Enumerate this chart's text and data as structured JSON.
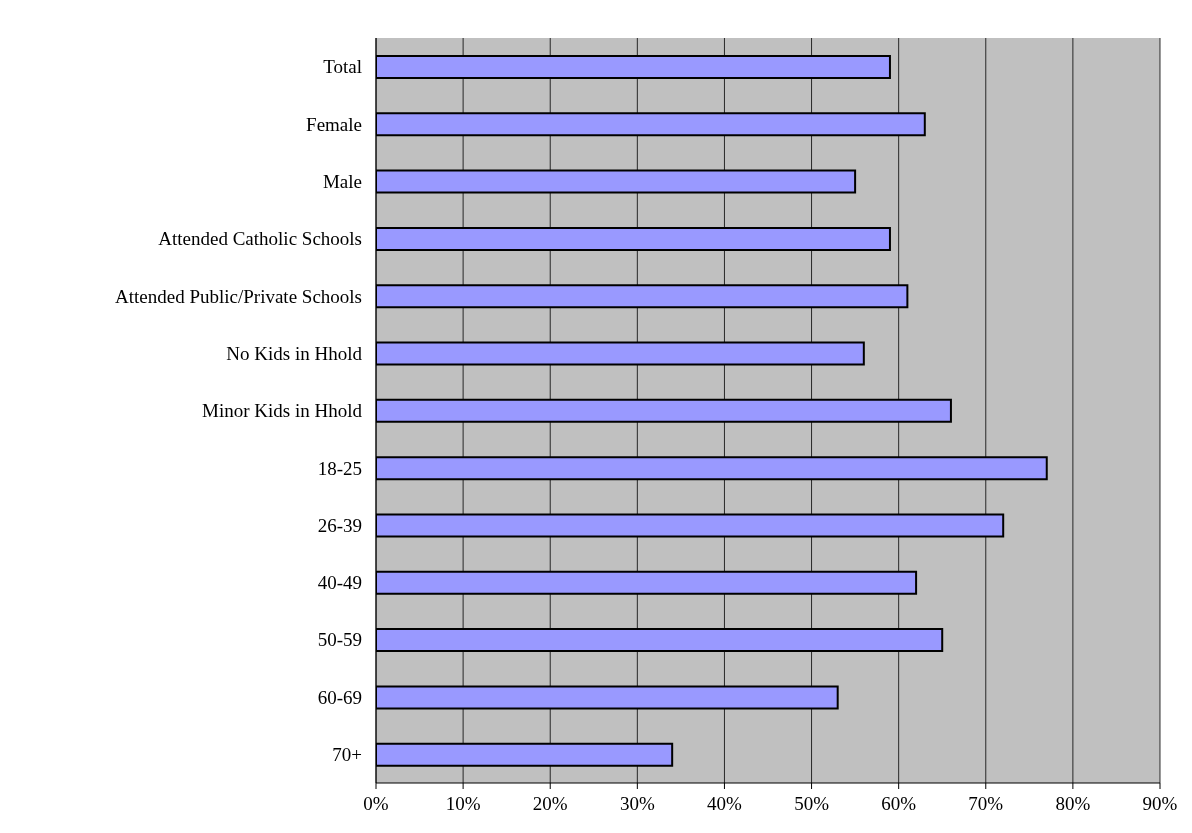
{
  "chart_data": {
    "type": "bar",
    "orientation": "horizontal",
    "categories": [
      "Total",
      "Female",
      "Male",
      "Attended Catholic Schools",
      "Attended Public/Private Schools",
      "No Kids in Hhold",
      "Minor Kids in Hhold",
      "18-25",
      "26-39",
      "40-49",
      "50-59",
      "60-69",
      "70+"
    ],
    "values": [
      59,
      63,
      55,
      59,
      61,
      56,
      66,
      77,
      72,
      62,
      65,
      53,
      34
    ],
    "color": "#9999ff",
    "xlim": [
      0,
      90
    ],
    "xticks": [
      {
        "value": 0,
        "label": "0%"
      },
      {
        "value": 10,
        "label": "10%"
      },
      {
        "value": 20,
        "label": "20%"
      },
      {
        "value": 30,
        "label": "30%"
      },
      {
        "value": 40,
        "label": "40%"
      },
      {
        "value": 50,
        "label": "50%"
      },
      {
        "value": 60,
        "label": "60%"
      },
      {
        "value": 70,
        "label": "70%"
      },
      {
        "value": 80,
        "label": "80%"
      },
      {
        "value": 90,
        "label": "90%"
      }
    ],
    "grid": "x",
    "legend": false
  }
}
